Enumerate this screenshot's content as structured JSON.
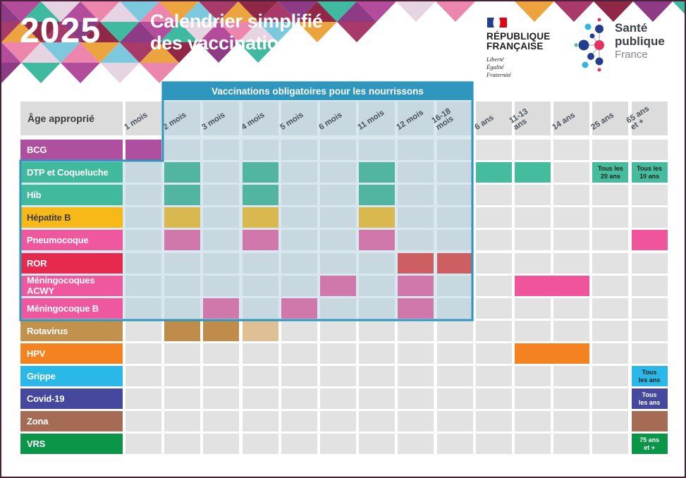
{
  "header": {
    "year": "2025",
    "title_line1": "Calendrier simplifié",
    "title_line2": "des vaccinations",
    "banner": "Vaccinations obligatoires pour les nourrissons"
  },
  "logos": {
    "republique": {
      "line1": "RÉPUBLIQUE",
      "line2": "FRANÇAISE",
      "motto": [
        "Liberté",
        "Égalité",
        "Fraternité"
      ]
    },
    "sante_publique": {
      "line1": "Santé",
      "line2": "publique",
      "line3": "France"
    }
  },
  "colors": {
    "banner_accent": "#2f96bd",
    "region_cell_bg": "#c7d8e1",
    "region_gap_bg": "#d9e7ef",
    "default_cell_bg": "#e2e2e2",
    "header_cell_bg": "#dcdcdc"
  },
  "chart_data": {
    "type": "table",
    "title": "Calendrier simplifié des vaccinations 2025",
    "corner_label": "Âge approprié",
    "columns": [
      "1 mois",
      "2 mois",
      "3 mois",
      "4 mois",
      "5 mois",
      "6 mois",
      "11 mois",
      "12 mois",
      "16-18\nmois",
      "6 ans",
      "11-13\nans",
      "14 ans",
      "25 ans",
      "65 ans\net +"
    ],
    "rows": [
      {
        "label": "BCG",
        "label_color": "#ae4f9f",
        "cells": [
          {
            "col": 0,
            "color": "#b04fa0"
          }
        ]
      },
      {
        "label": "DTP et Coqueluche",
        "label_color": "#41b99c",
        "cells": [
          {
            "col": 1,
            "color": "#52b5a1"
          },
          {
            "col": 3,
            "color": "#52b5a1"
          },
          {
            "col": 6,
            "color": "#52b5a1"
          },
          {
            "col": 9,
            "color": "#45bc9d"
          },
          {
            "col": 10,
            "color": "#45bc9d"
          },
          {
            "col": 12,
            "color": "#45bc9d",
            "text": "Tous les\n20 ans",
            "text_color": "#1d1d1b"
          },
          {
            "col": 13,
            "color": "#45bc9d",
            "text": "Tous les\n10 ans",
            "text_color": "#1d1d1b"
          }
        ]
      },
      {
        "label": "Hib",
        "label_color": "#41b99c",
        "cells": [
          {
            "col": 1,
            "color": "#52b5a1"
          },
          {
            "col": 3,
            "color": "#52b5a1"
          },
          {
            "col": 6,
            "color": "#52b5a1"
          }
        ]
      },
      {
        "label": "Hépatite B",
        "label_color": "#f7b917",
        "label_text_color": "#3c3c3b",
        "cells": [
          {
            "col": 1,
            "color": "#d9b84f"
          },
          {
            "col": 3,
            "color": "#d9b84f"
          },
          {
            "col": 6,
            "color": "#d9b84f"
          }
        ]
      },
      {
        "label": "Pneumocoque",
        "label_color": "#ef579f",
        "cells": [
          {
            "col": 1,
            "color": "#d077ab"
          },
          {
            "col": 3,
            "color": "#d077ab"
          },
          {
            "col": 6,
            "color": "#d077ab"
          },
          {
            "col": 13,
            "color": "#f0549b"
          }
        ]
      },
      {
        "label": "ROR",
        "label_color": "#e62a4e",
        "cells": [
          {
            "col": 7,
            "color": "#cd5f62"
          },
          {
            "col": 8,
            "color": "#cd5f62"
          }
        ]
      },
      {
        "label": "Méningocoques ACWY",
        "label_color": "#ef579f",
        "cells": [
          {
            "col": 5,
            "color": "#d077ab"
          },
          {
            "col": 7,
            "color": "#d077ab"
          },
          {
            "col": 10,
            "span": 2,
            "color": "#f0549b"
          }
        ]
      },
      {
        "label": "Méningocoque B",
        "label_color": "#ef579f",
        "cells": [
          {
            "col": 2,
            "color": "#d077ab"
          },
          {
            "col": 4,
            "color": "#d077ab"
          },
          {
            "col": 7,
            "color": "#d077ab"
          }
        ]
      },
      {
        "label": "Rotavirus",
        "label_color": "#c3914e",
        "cells": [
          {
            "col": 1,
            "color": "#c08c4b"
          },
          {
            "col": 2,
            "color": "#c08c4b"
          },
          {
            "col": 3,
            "color": "#dfc096"
          }
        ]
      },
      {
        "label": "HPV",
        "label_color": "#f58220",
        "cells": [
          {
            "col": 10,
            "span": 2,
            "color": "#f58220"
          }
        ]
      },
      {
        "label": "Grippe",
        "label_color": "#29b8e8",
        "cells": [
          {
            "col": 13,
            "color": "#29b8e8",
            "text": "Tous\nles ans",
            "text_color": "#1d1d1b"
          }
        ]
      },
      {
        "label": "Covid-19",
        "label_color": "#46489e",
        "cells": [
          {
            "col": 13,
            "color": "#46489e",
            "text": "Tous\nles ans",
            "text_color": "#ffffff"
          }
        ]
      },
      {
        "label": "Zona",
        "label_color": "#a56b55",
        "cells": [
          {
            "col": 13,
            "color": "#a56b55"
          }
        ]
      },
      {
        "label": "VRS",
        "label_color": "#0b9549",
        "cells": [
          {
            "col": 13,
            "color": "#0b9549",
            "text": "75 ans\net +",
            "text_color": "#ffffff"
          }
        ]
      }
    ]
  }
}
